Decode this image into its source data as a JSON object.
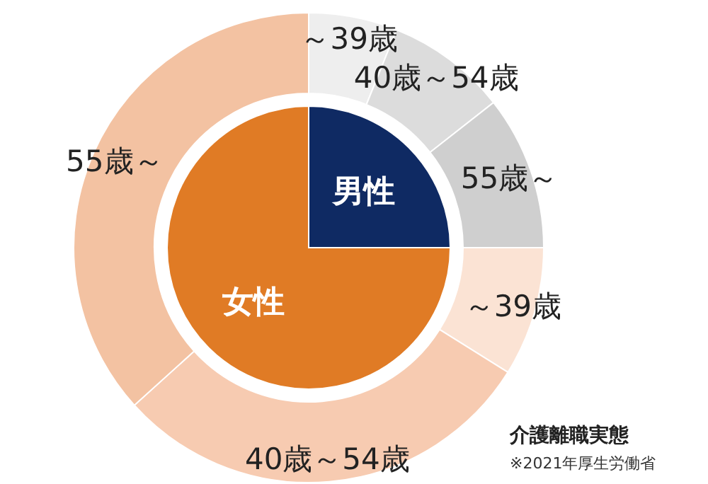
{
  "chart_data": [
    {
      "type": "pie",
      "categories": [
        "男性",
        "女性"
      ],
      "values": [
        25,
        75
      ],
      "colors": [
        "#0f2a63",
        "#e07b25"
      ]
    },
    {
      "type": "donut",
      "title": "介護離職実態",
      "annotations": [
        "※2021年厚生労働省"
      ],
      "categories": [
        "～39歳",
        "40歳～54歳",
        "55歳～",
        "～39歳",
        "40歳～54歳",
        "55歳～"
      ],
      "values": [
        6.1,
        8.3,
        10.6,
        8.9,
        29.4,
        36.7
      ],
      "colors": [
        "#eeeeee",
        "#dcdcdc",
        "#cfcfcf",
        "#fbe3d4",
        "#f7cbb1",
        "#f3c2a2"
      ]
    }
  ]
}
